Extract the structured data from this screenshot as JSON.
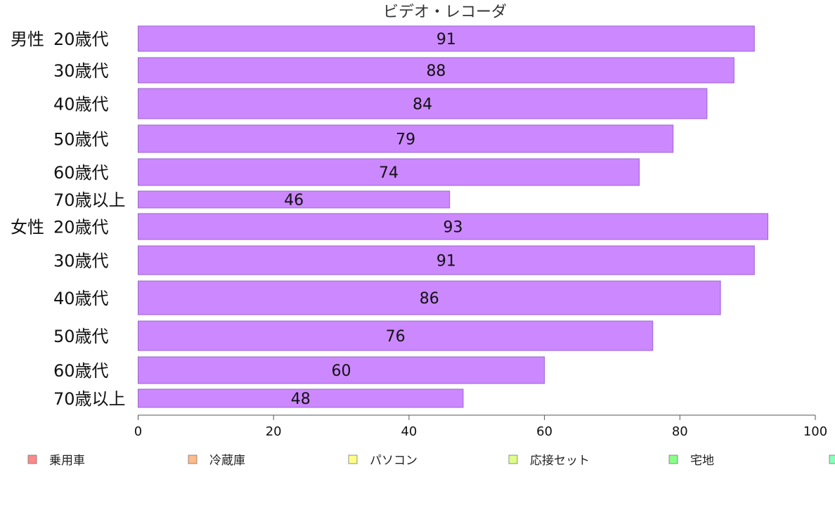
{
  "chart_data": {
    "type": "bar",
    "orientation": "horizontal",
    "title": "ビデオ・レコーダ",
    "groups": [
      {
        "name": "男性",
        "label": "男性"
      },
      {
        "name": "女性",
        "label": "女性"
      }
    ],
    "categories": [
      {
        "group": "男性",
        "label": "20歳代",
        "value": 91
      },
      {
        "group": "男性",
        "label": "30歳代",
        "value": 88
      },
      {
        "group": "男性",
        "label": "40歳代",
        "value": 84
      },
      {
        "group": "男性",
        "label": "50歳代",
        "value": 79
      },
      {
        "group": "男性",
        "label": "60歳代",
        "value": 74
      },
      {
        "group": "男性",
        "label": "70歳以上",
        "value": 46
      },
      {
        "group": "女性",
        "label": "20歳代",
        "value": 93
      },
      {
        "group": "女性",
        "label": "30歳代",
        "value": 91
      },
      {
        "group": "女性",
        "label": "40歳代",
        "value": 86
      },
      {
        "group": "女性",
        "label": "50歳代",
        "value": 76
      },
      {
        "group": "女性",
        "label": "60歳代",
        "value": 60
      },
      {
        "group": "女性",
        "label": "70歳以上",
        "value": 48
      }
    ],
    "xlim": [
      0,
      100
    ],
    "xticks": [
      "0",
      "20",
      "40",
      "60",
      "80",
      "100"
    ],
    "grid": false,
    "bar_color": "#cc88ff",
    "bar_border_color": "#9966cc",
    "legend": {
      "placement": "bottom",
      "items": [
        {
          "label": "乗用車",
          "color": "#ff8888"
        },
        {
          "label": "冷蔵庫",
          "color": "#ffbb88"
        },
        {
          "label": "パソコン",
          "color": "#ffff88"
        },
        {
          "label": "応接セット",
          "color": "#ddff88"
        },
        {
          "label": "宅地",
          "color": "#88ff88"
        },
        {
          "label": "",
          "color": "#88ffbb"
        }
      ]
    }
  }
}
